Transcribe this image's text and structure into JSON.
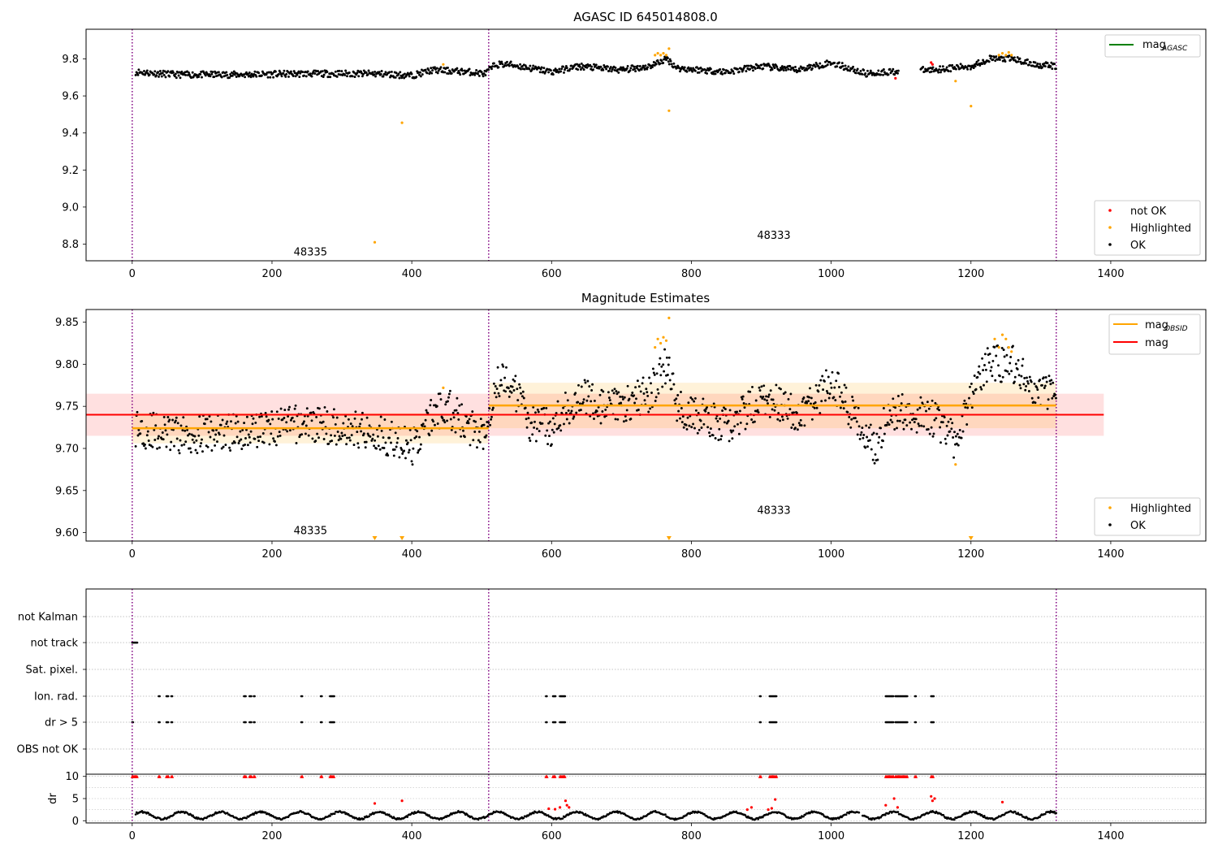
{
  "figure": {
    "background": "#ffffff"
  },
  "colors": {
    "ok": "#000000",
    "highlighted": "#ffa500",
    "not_ok": "#ff0000",
    "mag_agasc": "#008000",
    "mag_obsid": "#ffa500",
    "mag": "#ff0000",
    "obsid_boundary": "#800080",
    "grid": "#b0b0b0"
  },
  "chart_data": [
    {
      "id": "top",
      "type": "scatter",
      "title": "AGASC ID 645014808.0",
      "xlim": [
        -66,
        1536
      ],
      "ylim": [
        8.71,
        9.96
      ],
      "xticks": [
        0,
        200,
        400,
        600,
        800,
        1000,
        1200,
        1400
      ],
      "yticks": [
        8.8,
        9.0,
        9.2,
        9.4,
        9.6,
        9.8
      ],
      "ytick_labels": [
        "8.8",
        "9.0",
        "9.2",
        "9.4",
        "9.6",
        "9.8"
      ],
      "obsid_boundaries": [
        0,
        510,
        1322
      ],
      "obsid_labels": [
        {
          "text": "48335",
          "x": 255,
          "y": 8.76
        },
        {
          "text": "48333",
          "x": 918,
          "y": 8.85
        }
      ],
      "legend_top": {
        "placement": "upper right",
        "entries": [
          {
            "label": "mag",
            "subscript": "AGASC",
            "kind": "line",
            "color": "#008000"
          }
        ]
      },
      "legend_bottom": {
        "placement": "lower right",
        "entries": [
          {
            "label": "not OK",
            "kind": "point",
            "color": "#ff0000"
          },
          {
            "label": "Highlighted",
            "kind": "point",
            "color": "#ffa500"
          },
          {
            "label": "OK",
            "kind": "point",
            "color": "#000000"
          }
        ]
      },
      "series": [
        {
          "name": "OK",
          "kind": "ok_curve",
          "x_range": [
            5,
            1322
          ],
          "gaps": [
            [
              1097,
              1128
            ]
          ],
          "color": "#000000",
          "trend": [
            [
              5,
              9.73
            ],
            [
              60,
              9.715
            ],
            [
              150,
              9.715
            ],
            [
              250,
              9.72
            ],
            [
              350,
              9.72
            ],
            [
              400,
              9.71
            ],
            [
              430,
              9.74
            ],
            [
              480,
              9.73
            ],
            [
              505,
              9.72
            ],
            [
              520,
              9.77
            ],
            [
              540,
              9.77
            ],
            [
              600,
              9.73
            ],
            [
              640,
              9.76
            ],
            [
              700,
              9.74
            ],
            [
              740,
              9.76
            ],
            [
              765,
              9.8
            ],
            [
              780,
              9.75
            ],
            [
              850,
              9.73
            ],
            [
              900,
              9.76
            ],
            [
              950,
              9.74
            ],
            [
              1000,
              9.78
            ],
            [
              1050,
              9.72
            ],
            [
              1080,
              9.73
            ],
            [
              1140,
              9.74
            ],
            [
              1200,
              9.76
            ],
            [
              1225,
              9.8
            ],
            [
              1260,
              9.8
            ],
            [
              1290,
              9.77
            ],
            [
              1322,
              9.76
            ]
          ]
        },
        {
          "name": "Highlighted",
          "kind": "points",
          "color": "#ffa500",
          "points": [
            [
              347,
              8.81
            ],
            [
              386,
              9.455
            ],
            [
              445,
              9.77
            ],
            [
              748,
              9.82
            ],
            [
              752,
              9.83
            ],
            [
              756,
              9.82
            ],
            [
              760,
              9.83
            ],
            [
              764,
              9.82
            ],
            [
              768,
              9.855
            ],
            [
              768,
              9.52
            ],
            [
              1178,
              9.68
            ],
            [
              1200,
              9.545
            ],
            [
              1240,
              9.82
            ],
            [
              1245,
              9.83
            ],
            [
              1250,
              9.82
            ],
            [
              1254,
              9.835
            ],
            [
              1258,
              9.82
            ]
          ]
        },
        {
          "name": "not OK",
          "kind": "points",
          "color": "#ff0000",
          "points": [
            [
              1092,
              9.695
            ],
            [
              1143,
              9.78
            ],
            [
              1145,
              9.77
            ]
          ]
        }
      ]
    },
    {
      "id": "middle",
      "type": "scatter",
      "title": "Magnitude Estimates",
      "xlim": [
        -66,
        1536
      ],
      "ylim": [
        9.59,
        9.865
      ],
      "xticks": [
        0,
        200,
        400,
        600,
        800,
        1000,
        1200,
        1400
      ],
      "yticks": [
        9.6,
        9.65,
        9.7,
        9.75,
        9.8,
        9.85
      ],
      "ytick_labels": [
        "9.60",
        "9.65",
        "9.70",
        "9.75",
        "9.80",
        "9.85"
      ],
      "obsid_boundaries": [
        0,
        510,
        1322
      ],
      "obsid_labels": [
        {
          "text": "48335",
          "x": 255,
          "y": 9.603
        },
        {
          "text": "48333",
          "x": 918,
          "y": 9.627
        }
      ],
      "legend_top": {
        "placement": "upper right",
        "entries": [
          {
            "label": "mag",
            "subscript": "OBSID",
            "kind": "line",
            "color": "#ffa500"
          },
          {
            "label": "mag",
            "subscript": "",
            "kind": "line",
            "color": "#ff0000"
          }
        ]
      },
      "legend_bottom": {
        "placement": "lower right",
        "entries": [
          {
            "label": "Highlighted",
            "kind": "point",
            "color": "#ffa500"
          },
          {
            "label": "OK",
            "kind": "point",
            "color": "#000000"
          }
        ]
      },
      "mag": {
        "value": 9.74,
        "band": [
          9.715,
          9.765
        ],
        "x_range": [
          -66,
          1390
        ],
        "color": "#ff0000"
      },
      "mag_obsid": [
        {
          "x_range": [
            0,
            510
          ],
          "value": 9.724,
          "band": [
            9.706,
            9.742
          ]
        },
        {
          "x_range": [
            510,
            1322
          ],
          "value": 9.751,
          "band": [
            9.724,
            9.778
          ]
        }
      ],
      "series": [
        {
          "name": "OK",
          "kind": "ok_curve",
          "x_range": [
            5,
            1322
          ],
          "gaps": [],
          "color": "#000000",
          "trend": [
            [
              5,
              9.725
            ],
            [
              60,
              9.715
            ],
            [
              150,
              9.72
            ],
            [
              250,
              9.73
            ],
            [
              350,
              9.72
            ],
            [
              385,
              9.705
            ],
            [
              400,
              9.7
            ],
            [
              430,
              9.74
            ],
            [
              450,
              9.75
            ],
            [
              480,
              9.725
            ],
            [
              505,
              9.72
            ],
            [
              520,
              9.78
            ],
            [
              540,
              9.78
            ],
            [
              570,
              9.73
            ],
            [
              600,
              9.725
            ],
            [
              640,
              9.765
            ],
            [
              680,
              9.745
            ],
            [
              740,
              9.765
            ],
            [
              765,
              9.8
            ],
            [
              780,
              9.75
            ],
            [
              850,
              9.725
            ],
            [
              900,
              9.76
            ],
            [
              960,
              9.74
            ],
            [
              1000,
              9.78
            ],
            [
              1040,
              9.73
            ],
            [
              1065,
              9.7
            ],
            [
              1080,
              9.745
            ],
            [
              1140,
              9.74
            ],
            [
              1175,
              9.71
            ],
            [
              1200,
              9.76
            ],
            [
              1225,
              9.8
            ],
            [
              1260,
              9.8
            ],
            [
              1290,
              9.77
            ],
            [
              1322,
              9.765
            ]
          ]
        },
        {
          "name": "Highlighted",
          "kind": "points",
          "color": "#ffa500",
          "points": [
            [
              445,
              9.772
            ],
            [
              748,
              9.82
            ],
            [
              752,
              9.83
            ],
            [
              756,
              9.825
            ],
            [
              760,
              9.832
            ],
            [
              764,
              9.828
            ],
            [
              768,
              9.855
            ],
            [
              1178,
              9.681
            ],
            [
              1234,
              9.83
            ],
            [
              1240,
              9.82
            ],
            [
              1245,
              9.835
            ],
            [
              1250,
              9.83
            ],
            [
              1254,
              9.82
            ],
            [
              1258,
              9.815
            ]
          ]
        },
        {
          "name": "Highlighted (off scale)",
          "kind": "markers_bottom",
          "color": "#ffa500",
          "x": [
            347,
            386,
            768,
            1200
          ]
        }
      ]
    },
    {
      "id": "flags",
      "type": "scatter",
      "title": "",
      "xlim": [
        -66,
        1536
      ],
      "categories": [
        "not Kalman",
        "not track",
        "Sat. pixel.",
        "Ion. rad.",
        "dr > 5",
        "OBS not OK"
      ],
      "obsid_boundaries": [
        0,
        510,
        1322
      ],
      "flag_points": {
        "not track": {
          "x_ranges": [
            [
              0,
              8
            ]
          ]
        },
        "Ion. rad.": {
          "x_ranges": [
            [
              38,
              40
            ],
            [
              49,
              52
            ],
            [
              56,
              58
            ],
            [
              160,
              163
            ],
            [
              168,
              171
            ],
            [
              174,
              176
            ],
            [
              242,
              244
            ],
            [
              270,
              272
            ],
            [
              283,
              289
            ],
            [
              592,
              594
            ],
            [
              602,
              606
            ],
            [
              612,
              620
            ],
            [
              898,
              900
            ],
            [
              912,
              922
            ],
            [
              1078,
              1090
            ],
            [
              1092,
              1110
            ],
            [
              1120,
              1122
            ],
            [
              1143,
              1147
            ]
          ]
        },
        "dr > 5": {
          "x_ranges": [
            [
              0,
              2
            ],
            [
              38,
              40
            ],
            [
              49,
              52
            ],
            [
              56,
              58
            ],
            [
              160,
              163
            ],
            [
              168,
              171
            ],
            [
              174,
              176
            ],
            [
              242,
              244
            ],
            [
              270,
              272
            ],
            [
              283,
              289
            ],
            [
              592,
              594
            ],
            [
              602,
              606
            ],
            [
              612,
              620
            ],
            [
              898,
              900
            ],
            [
              912,
              922
            ],
            [
              1078,
              1090
            ],
            [
              1092,
              1110
            ],
            [
              1120,
              1122
            ],
            [
              1143,
              1147
            ]
          ]
        }
      }
    },
    {
      "id": "dr",
      "type": "scatter",
      "title": "",
      "ylabel": "dr",
      "xlim": [
        -66,
        1536
      ],
      "ylim": [
        -0.5,
        10.5
      ],
      "xticks": [
        0,
        200,
        400,
        600,
        800,
        1000,
        1200,
        1400
      ],
      "yticks": [
        0,
        5,
        10
      ],
      "ytick_labels": [
        "0",
        "5",
        "10"
      ],
      "obsid_boundaries": [
        0,
        510,
        1322
      ],
      "series": [
        {
          "name": "dr",
          "kind": "dr_curve",
          "x_range": [
            5,
            1322
          ],
          "gaps": [
            [
              1040,
              1044
            ]
          ],
          "color": "#000000"
        },
        {
          "name": "dr not OK",
          "kind": "points",
          "color": "#ff0000",
          "points": [
            [
              347,
              3.9
            ],
            [
              386,
              4.5
            ],
            [
              596,
              2.7
            ],
            [
              605,
              2.6
            ],
            [
              612,
              3.0
            ],
            [
              620,
              4.5
            ],
            [
              622,
              3.5
            ],
            [
              625,
              3.0
            ],
            [
              880,
              2.5
            ],
            [
              886,
              3.0
            ],
            [
              910,
              2.5
            ],
            [
              915,
              2.8
            ],
            [
              920,
              4.8
            ],
            [
              1078,
              3.5
            ],
            [
              1090,
              5.0
            ],
            [
              1095,
              3.0
            ],
            [
              1143,
              5.5
            ],
            [
              1145,
              4.5
            ],
            [
              1148,
              5.0
            ],
            [
              1245,
              4.2
            ]
          ]
        },
        {
          "name": "dr capped",
          "kind": "markers_top",
          "color": "#ff0000",
          "x_ranges": [
            [
              0,
              8
            ],
            [
              38,
              40
            ],
            [
              49,
              52
            ],
            [
              56,
              58
            ],
            [
              160,
              163
            ],
            [
              168,
              171
            ],
            [
              174,
              176
            ],
            [
              242,
              244
            ],
            [
              270,
              272
            ],
            [
              283,
              289
            ],
            [
              592,
              594
            ],
            [
              602,
              606
            ],
            [
              612,
              620
            ],
            [
              898,
              900
            ],
            [
              912,
              922
            ],
            [
              1078,
              1090
            ],
            [
              1092,
              1110
            ],
            [
              1120,
              1122
            ],
            [
              1143,
              1147
            ]
          ]
        }
      ]
    }
  ]
}
